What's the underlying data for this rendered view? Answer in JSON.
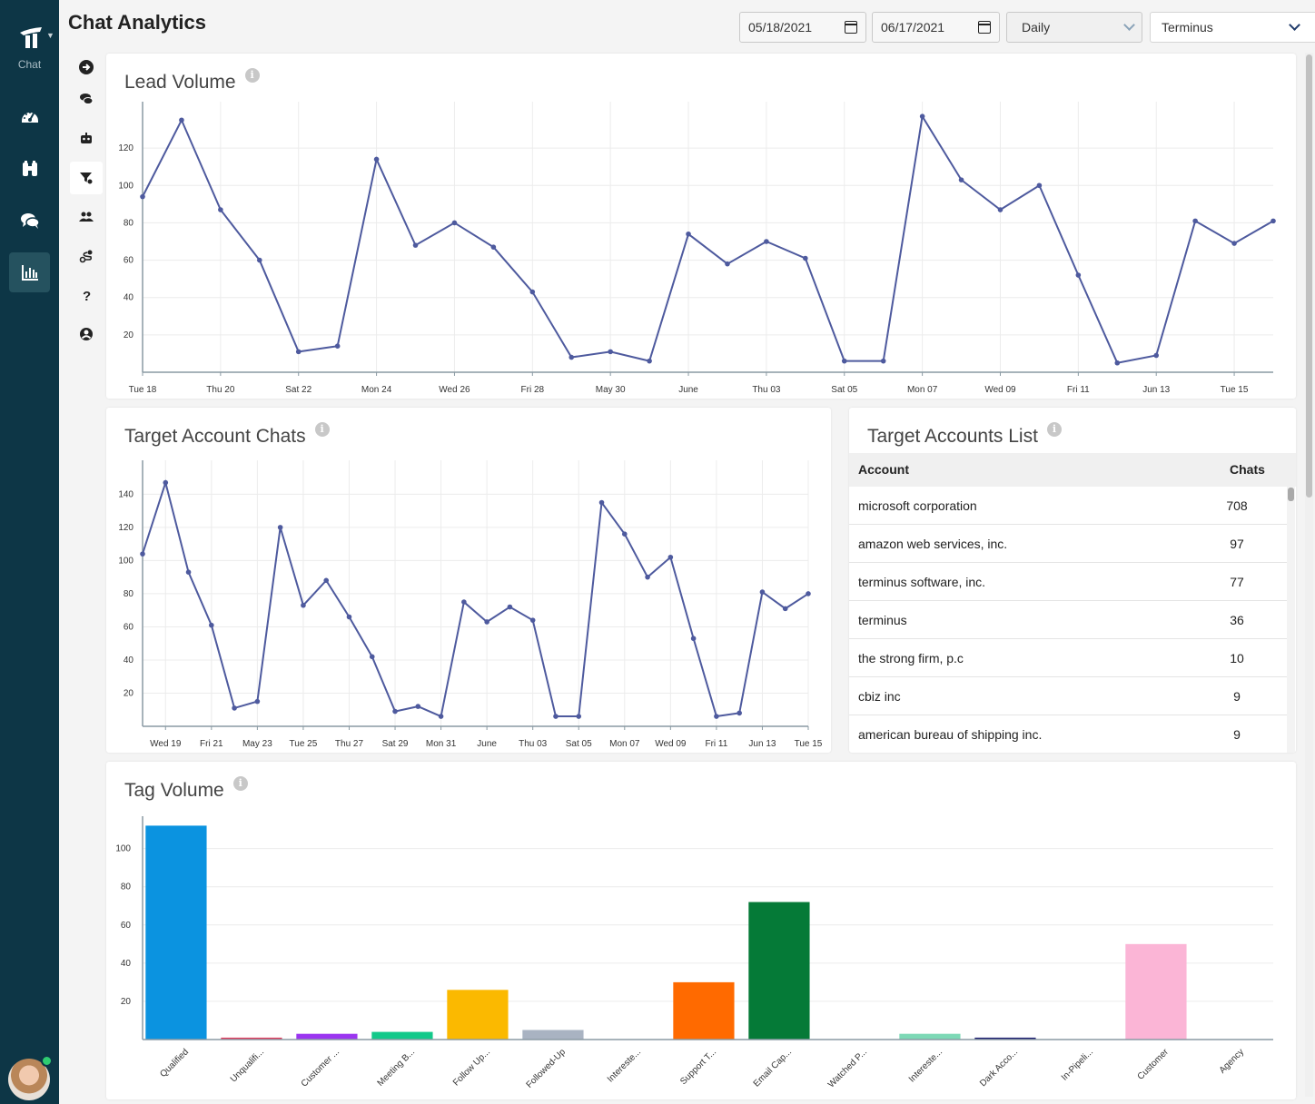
{
  "sidebar": {
    "logo_label": "Chat",
    "items": [
      {
        "name": "dashboard-icon"
      },
      {
        "name": "binoculars-icon"
      },
      {
        "name": "chat-bubbles-icon"
      },
      {
        "name": "analytics-icon",
        "active": true
      }
    ]
  },
  "rail": {
    "items": [
      "arrow-right-icon",
      "chats-icon",
      "bot-icon",
      "filter-icon",
      "users-icon",
      "routing-icon",
      "help-icon",
      "user-circle-icon"
    ],
    "active_index": 3
  },
  "header": {
    "title": "Chat Analytics",
    "start_date": "05/18/2021",
    "end_date": "06/17/2021",
    "interval": "Daily",
    "account": "Terminus"
  },
  "lead_volume": {
    "title": "Lead Volume",
    "chart_data": {
      "type": "line",
      "title": "Lead Volume",
      "x": [
        "May 18",
        "May 19",
        "May 20",
        "May 21",
        "May 22",
        "May 23",
        "May 24",
        "May 25",
        "May 26",
        "May 27",
        "May 28",
        "May 29",
        "May 30",
        "May 31",
        "Jun 01",
        "Jun 02",
        "Jun 03",
        "Jun 04",
        "Jun 05",
        "Jun 06",
        "Jun 07",
        "Jun 08",
        "Jun 09",
        "Jun 10",
        "Jun 11",
        "Jun 12",
        "Jun 13",
        "Jun 14",
        "Jun 15",
        "Jun 16"
      ],
      "y": [
        94,
        135,
        87,
        60,
        11,
        14,
        114,
        68,
        80,
        67,
        43,
        8,
        11,
        6,
        74,
        58,
        70,
        61,
        6,
        6,
        137,
        103,
        87,
        100,
        52,
        5,
        9,
        81,
        69,
        81
      ],
      "tick_labels": [
        "Tue 18",
        "Thu 20",
        "Sat 22",
        "Mon 24",
        "Wed 26",
        "Fri 28",
        "May 30",
        "June",
        "Thu 03",
        "Sat 05",
        "Mon 07",
        "Wed 09",
        "Fri 11",
        "Jun 13",
        "Tue 15"
      ],
      "yticks": [
        20,
        40,
        60,
        80,
        100,
        120
      ],
      "ylim": [
        0,
        140
      ],
      "color": "#4e5a9e",
      "grid": true
    }
  },
  "target_chats": {
    "title": "Target Account Chats",
    "chart_data": {
      "type": "line",
      "title": "Target Account Chats",
      "x": [
        "May 18",
        "May 19",
        "May 20",
        "May 21",
        "May 22",
        "May 23",
        "May 24",
        "May 25",
        "May 26",
        "May 27",
        "May 28",
        "May 29",
        "May 30",
        "May 31",
        "Jun 01",
        "Jun 02",
        "Jun 03",
        "Jun 04",
        "Jun 05",
        "Jun 06",
        "Jun 07",
        "Jun 08",
        "Jun 09",
        "Jun 10",
        "Jun 11",
        "Jun 12",
        "Jun 13",
        "Jun 14",
        "Jun 15",
        "Jun 16"
      ],
      "y": [
        104,
        147,
        93,
        61,
        11,
        15,
        120,
        73,
        88,
        66,
        42,
        9,
        12,
        6,
        75,
        63,
        72,
        64,
        6,
        6,
        135,
        116,
        90,
        102,
        53,
        6,
        8,
        81,
        71,
        80
      ],
      "tick_labels": [
        "Wed 19",
        "Fri 21",
        "May 23",
        "Tue 25",
        "Thu 27",
        "Sat 29",
        "Mon 31",
        "June",
        "Thu 03",
        "Sat 05",
        "Mon 07",
        "Wed 09",
        "Fri 11",
        "Jun 13",
        "Tue 15"
      ],
      "yticks": [
        20,
        40,
        60,
        80,
        100,
        120,
        140
      ],
      "ylim": [
        0,
        155
      ],
      "color": "#4e5a9e",
      "grid": true
    }
  },
  "accounts_list": {
    "title": "Target Accounts List",
    "columns": [
      "Account",
      "Chats"
    ],
    "rows": [
      {
        "account": "microsoft corporation",
        "chats": "708"
      },
      {
        "account": "amazon web services, inc.",
        "chats": "97"
      },
      {
        "account": "terminus software, inc.",
        "chats": "77"
      },
      {
        "account": "terminus",
        "chats": "36"
      },
      {
        "account": "the strong firm, p.c",
        "chats": "10"
      },
      {
        "account": "cbiz inc",
        "chats": "9"
      },
      {
        "account": "american bureau of shipping inc.",
        "chats": "9"
      }
    ]
  },
  "tag_volume": {
    "title": "Tag Volume",
    "chart_data": {
      "type": "bar",
      "title": "Tag Volume",
      "categories": [
        "Qualified",
        "Unqualifi...",
        "Customer ...",
        "Meeting B...",
        "Follow Up...",
        "Followed-Up",
        "Intereste...",
        "Support T...",
        "Email Cap...",
        "Watched P...",
        "Intereste...",
        "Dark Acco...",
        "In-Pipeli...",
        "Customer",
        "Agency"
      ],
      "values": [
        112,
        1,
        3,
        4,
        26,
        5,
        0,
        30,
        72,
        0,
        3,
        1,
        0,
        50,
        0
      ],
      "colors": [
        "#0b93e0",
        "#e03a5c",
        "#9b35f0",
        "#12c98a",
        "#fbb900",
        "#a9b3c2",
        "#cccccc",
        "#ff6a00",
        "#057a37",
        "#cccccc",
        "#7dd9b6",
        "#1a1a6e",
        "#cccccc",
        "#fbb5d6",
        "#cccccc"
      ],
      "yticks": [
        20,
        40,
        60,
        80,
        100
      ],
      "ylim": [
        0,
        116
      ],
      "grid": true
    }
  }
}
